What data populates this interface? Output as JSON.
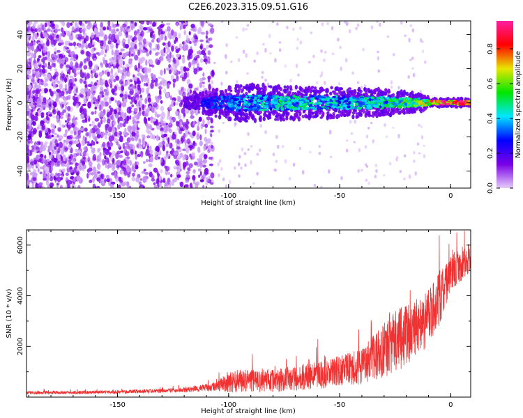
{
  "figure": {
    "title": "C2E6.2023.315.09.51.G16"
  },
  "chart_data": [
    {
      "type": "heatmap",
      "name": "spectrogram",
      "xlabel": "Height of straight line (km)",
      "ylabel": "Frequency (Hz)",
      "xlim": [
        -191,
        9
      ],
      "ylim": [
        -50,
        48
      ],
      "xticks": [
        -150,
        -100,
        -50,
        0
      ],
      "yticks": [
        -40,
        -20,
        0,
        20,
        40
      ],
      "colorbar": {
        "label": "Normalized spectral amplitude",
        "range": [
          0,
          0.96
        ],
        "ticks": [
          0.0,
          0.2,
          0.4,
          0.6,
          0.8
        ],
        "colors": [
          "#e6cdfa",
          "#7a00e6",
          "#0000ff",
          "#00e6ff",
          "#00e600",
          "#e6e600",
          "#ff0000",
          "#ff1ea0"
        ]
      },
      "signal": {
        "center_frequency": 0,
        "start_height": -120,
        "noise_end_height": -107,
        "segments": [
          {
            "x": -120,
            "halfwidth": 2,
            "amp": 0.15
          },
          {
            "x": -110,
            "halfwidth": 6,
            "amp": 0.3
          },
          {
            "x": -95,
            "halfwidth": 10,
            "amp": 0.4
          },
          {
            "x": -75,
            "halfwidth": 9,
            "amp": 0.5
          },
          {
            "x": -50,
            "halfwidth": 8,
            "amp": 0.45
          },
          {
            "x": -30,
            "halfwidth": 7,
            "amp": 0.5
          },
          {
            "x": -15,
            "halfwidth": 5,
            "amp": 0.6
          },
          {
            "x": -8,
            "halfwidth": 2,
            "amp": 0.9
          },
          {
            "x": 8,
            "halfwidth": 2,
            "amp": 0.96
          }
        ]
      }
    },
    {
      "type": "line",
      "name": "snr",
      "xlabel": "Height of straight line (km)",
      "ylabel": "SNR (10 * v/v)",
      "xlim": [
        -191,
        9
      ],
      "ylim": [
        0,
        6600
      ],
      "xticks": [
        -150,
        -100,
        -50,
        0
      ],
      "yticks": [
        2000,
        4000,
        6000
      ],
      "color": "#f03232",
      "envelope": [
        {
          "x": -191,
          "base": 150,
          "spread": 120
        },
        {
          "x": -150,
          "base": 180,
          "spread": 130
        },
        {
          "x": -120,
          "base": 250,
          "spread": 180
        },
        {
          "x": -105,
          "base": 350,
          "spread": 400
        },
        {
          "x": -100,
          "base": 500,
          "spread": 900
        },
        {
          "x": -80,
          "base": 500,
          "spread": 900
        },
        {
          "x": -60,
          "base": 700,
          "spread": 1100
        },
        {
          "x": -40,
          "base": 1000,
          "spread": 1400
        },
        {
          "x": -25,
          "base": 1800,
          "spread": 2500
        },
        {
          "x": -12,
          "base": 2600,
          "spread": 2200
        },
        {
          "x": -5,
          "base": 3600,
          "spread": 2200
        },
        {
          "x": 0,
          "base": 4700,
          "spread": 1500
        },
        {
          "x": 8,
          "base": 5300,
          "spread": 1200
        }
      ]
    }
  ]
}
